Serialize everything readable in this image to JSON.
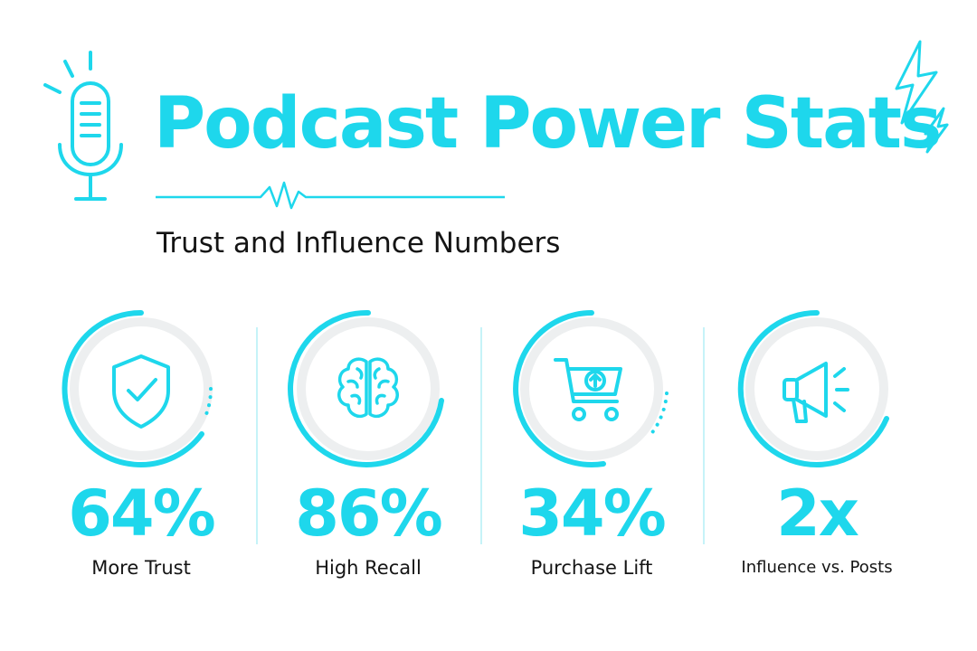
{
  "header": {
    "title": "Podcast Power Stats",
    "subtitle": "Trust and Influence Numbers",
    "accent_color": "#1ED7EC",
    "text_color": "#141414"
  },
  "stats": [
    {
      "value": "64%",
      "label": "More Trust",
      "icon": "shield-check-icon"
    },
    {
      "value": "86%",
      "label": "High Recall",
      "icon": "brain-icon"
    },
    {
      "value": "34%",
      "label": "Purchase Lift",
      "icon": "shopping-cart-icon"
    },
    {
      "value": "2x",
      "label": "Influence vs. Posts",
      "icon": "megaphone-icon"
    }
  ]
}
